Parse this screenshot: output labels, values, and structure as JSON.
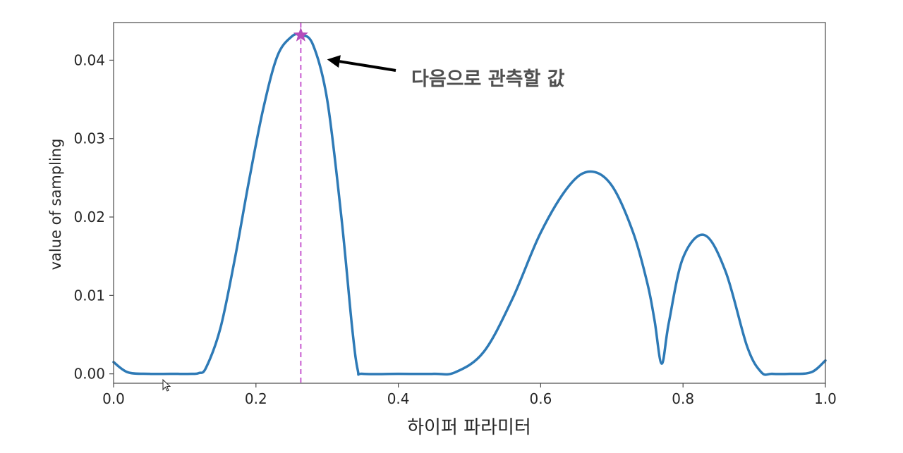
{
  "chart_data": {
    "type": "line",
    "xlabel": "하이퍼 파라미터",
    "ylabel": "value of sampling",
    "xlim": [
      0.0,
      1.0
    ],
    "ylim": [
      -0.0012,
      0.0448
    ],
    "x_ticks": [
      "0.0",
      "0.2",
      "0.4",
      "0.6",
      "0.8",
      "1.0"
    ],
    "y_ticks": [
      "0.00",
      "0.01",
      "0.02",
      "0.03",
      "0.04"
    ],
    "grid": false,
    "series": [
      {
        "color": "#2e7ab6",
        "x": [
          0.0,
          0.02,
          0.05,
          0.08,
          0.11,
          0.12,
          0.13,
          0.15,
          0.17,
          0.19,
          0.21,
          0.23,
          0.25,
          0.263,
          0.28,
          0.3,
          0.32,
          0.335,
          0.343,
          0.35,
          0.4,
          0.45,
          0.48,
          0.52,
          0.56,
          0.6,
          0.64,
          0.67,
          0.7,
          0.73,
          0.75,
          0.76,
          0.77,
          0.78,
          0.8,
          0.83,
          0.86,
          0.89,
          0.91,
          0.925,
          0.95,
          0.98,
          1.0
        ],
        "y": [
          0.0015,
          0.0002,
          0.0,
          0.0,
          0.0,
          0.0001,
          0.0008,
          0.0058,
          0.0145,
          0.0245,
          0.0337,
          0.0405,
          0.043,
          0.0432,
          0.042,
          0.035,
          0.02,
          0.006,
          0.0005,
          0.0,
          0.0,
          0.0,
          0.0002,
          0.0028,
          0.0095,
          0.018,
          0.024,
          0.0258,
          0.024,
          0.018,
          0.0115,
          0.0068,
          0.0013,
          0.0065,
          0.0148,
          0.0177,
          0.013,
          0.0035,
          0.0002,
          0.0,
          0.0,
          0.0002,
          0.0017
        ]
      }
    ],
    "marker": {
      "x": 0.263,
      "y": 0.0432,
      "shape": "star",
      "color": "#b44dbb"
    },
    "vline": {
      "x": 0.263,
      "color": "#c85ad0",
      "style": "dashed"
    },
    "annotation": {
      "text": "다음으로 관측할 값",
      "arrow_to": [
        0.3,
        0.0401
      ]
    }
  }
}
